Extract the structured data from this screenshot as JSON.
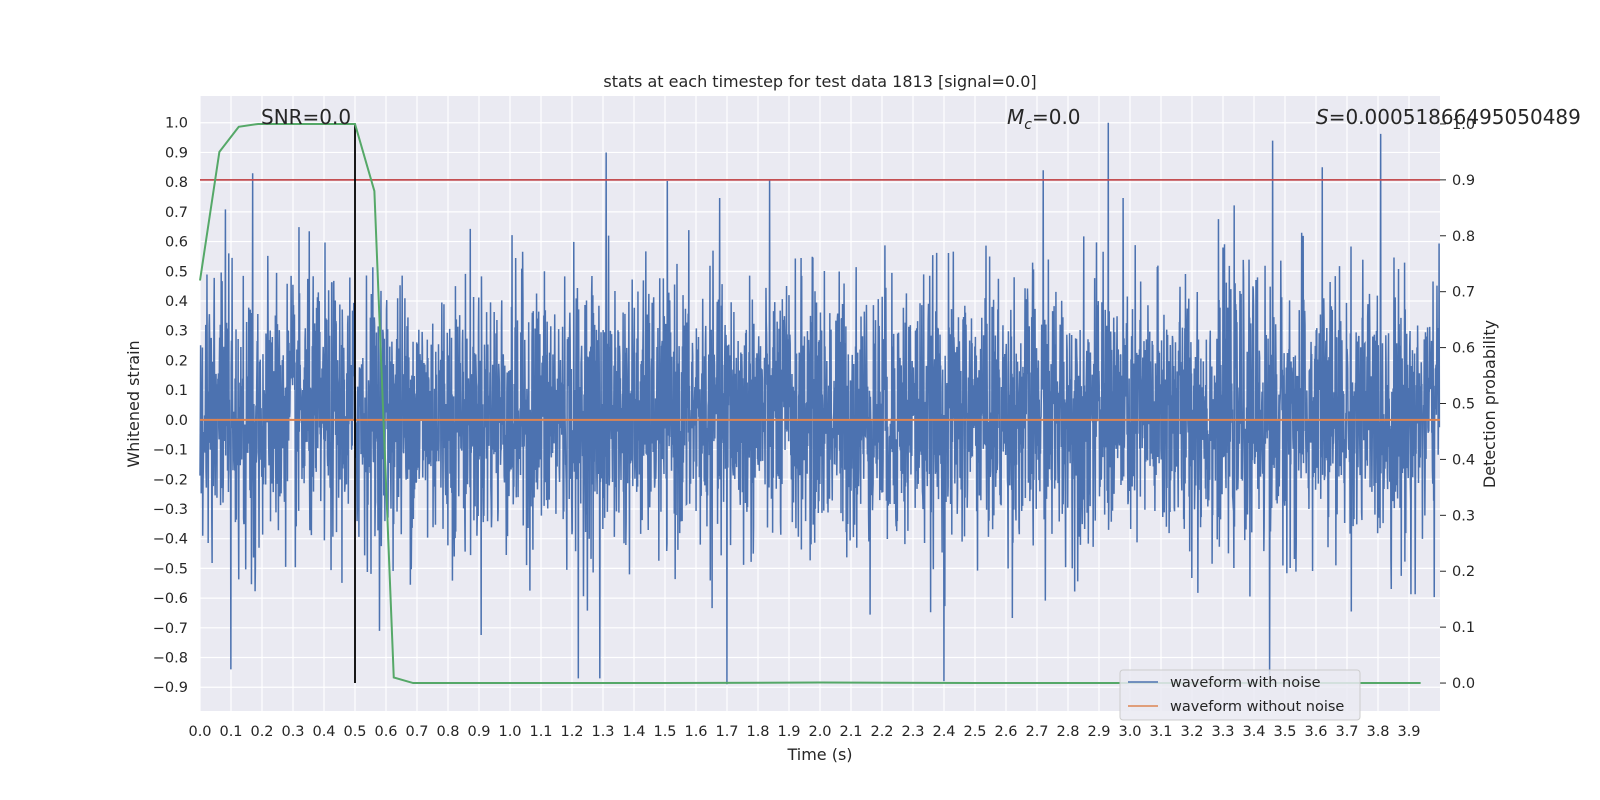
{
  "chart_data": {
    "type": "line",
    "title": "stats at each timestep for test data 1813 [signal=0.0]",
    "xlabel": "Time (s)",
    "ylabel": "Whitened strain",
    "y2label": "Detection probability",
    "xlim": [
      0.0,
      4.0
    ],
    "ylim": [
      -0.98,
      1.09
    ],
    "y2lim": [
      -0.05,
      1.05
    ],
    "xticks": [
      "0.0",
      "0.1",
      "0.2",
      "0.3",
      "0.4",
      "0.5",
      "0.6",
      "0.7",
      "0.8",
      "0.9",
      "1.0",
      "1.1",
      "1.2",
      "1.3",
      "1.4",
      "1.5",
      "1.6",
      "1.7",
      "1.8",
      "1.9",
      "2.0",
      "2.1",
      "2.2",
      "2.3",
      "2.4",
      "2.5",
      "2.6",
      "2.7",
      "2.8",
      "2.9",
      "3.0",
      "3.1",
      "3.2",
      "3.3",
      "3.4",
      "3.5",
      "3.6",
      "3.7",
      "3.8",
      "3.9"
    ],
    "yticks": [
      "1.0",
      "0.9",
      "0.8",
      "0.7",
      "0.6",
      "0.5",
      "0.4",
      "0.3",
      "0.2",
      "0.1",
      "0.0",
      "−0.1",
      "−0.2",
      "−0.3",
      "−0.4",
      "−0.5",
      "−0.6",
      "−0.7",
      "−0.8",
      "−0.9"
    ],
    "y2ticks": [
      "1.0",
      "0.9",
      "0.8",
      "0.7",
      "0.6",
      "0.5",
      "0.4",
      "0.3",
      "0.2",
      "0.1",
      "0.0"
    ],
    "annotations": {
      "snr": "SNR=0.0",
      "mc_symbol": "M",
      "mc_sub": "c",
      "mc_value": "=0.0",
      "s_symbol": "S",
      "s_value": "=0.00051866495050489"
    },
    "legend": {
      "position": "lower-right",
      "entries": [
        "waveform with noise",
        "waveform without noise"
      ]
    },
    "noise_series": {
      "name": "waveform with noise",
      "color": "#4c72b0",
      "amplitude_envelope": [
        -0.9,
        1.0
      ],
      "peaks": [
        {
          "x": 0.17,
          "y": 0.83
        },
        {
          "x": 1.31,
          "y": 0.9
        },
        {
          "x": 2.93,
          "y": 1.0
        },
        {
          "x": 3.46,
          "y": 0.94
        },
        {
          "x": 3.62,
          "y": 0.85
        },
        {
          "x": 2.72,
          "y": 0.84
        },
        {
          "x": 0.1,
          "y": -0.84
        },
        {
          "x": 1.22,
          "y": -0.87
        },
        {
          "x": 1.29,
          "y": -0.87
        },
        {
          "x": 1.7,
          "y": -0.89
        },
        {
          "x": 2.4,
          "y": -0.88
        },
        {
          "x": 3.45,
          "y": -0.86
        }
      ]
    },
    "clean_series": {
      "name": "waveform without noise",
      "color": "#dd8452",
      "value": 0.0
    },
    "threshold_line": {
      "color": "#c44e52",
      "value": 0.9
    },
    "event_marker": {
      "color": "#000000",
      "x": 0.5
    },
    "probability_series": {
      "color": "#55a868",
      "x": [
        0.0,
        0.0625,
        0.125,
        0.1875,
        0.25,
        0.3125,
        0.375,
        0.4375,
        0.5,
        0.5625,
        0.625,
        0.6875,
        0.75,
        1.0,
        1.5,
        2.0,
        2.5,
        3.0,
        3.5,
        3.9375
      ],
      "y": [
        0.72,
        0.95,
        0.995,
        1.0,
        1.0,
        1.0,
        1.0,
        1.0,
        1.0,
        0.88,
        0.01,
        0.0,
        0.0,
        0.0,
        0.0,
        0.001,
        0.0,
        0.0,
        0.0,
        0.0
      ]
    },
    "colors": {
      "plot_bg": "#eaeaf2",
      "grid": "#ffffff"
    }
  }
}
